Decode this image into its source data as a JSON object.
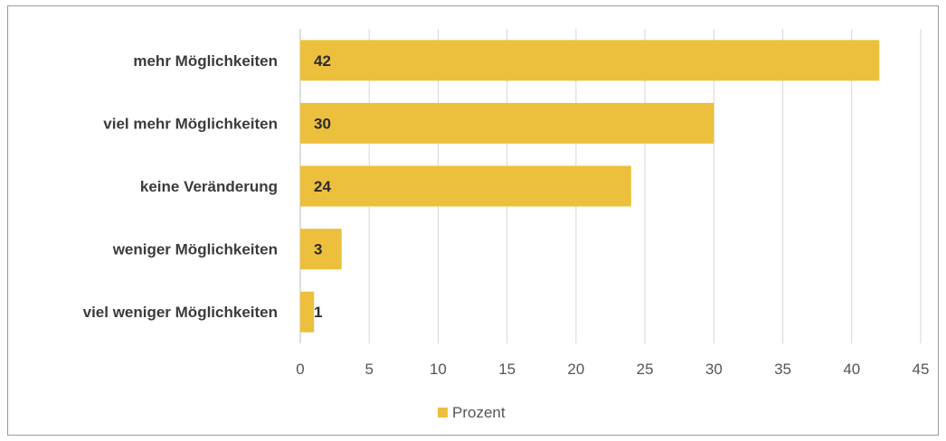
{
  "chart_data": {
    "type": "bar",
    "orientation": "horizontal",
    "categories": [
      "mehr Möglichkeiten",
      "viel mehr Möglichkeiten",
      "keine Veränderung",
      "weniger Möglichkeiten",
      "viel weniger Möglichkeiten"
    ],
    "series": [
      {
        "name": "Prozent",
        "values": [
          42,
          30,
          24,
          3,
          1
        ],
        "color": "#ecc03d"
      }
    ],
    "xlim": [
      0,
      45
    ],
    "xticks": [
      0,
      5,
      10,
      15,
      20,
      25,
      30,
      35,
      40,
      45
    ],
    "title": "",
    "xlabel": "",
    "ylabel": "",
    "grid": "vertical",
    "legend_position": "bottom"
  }
}
